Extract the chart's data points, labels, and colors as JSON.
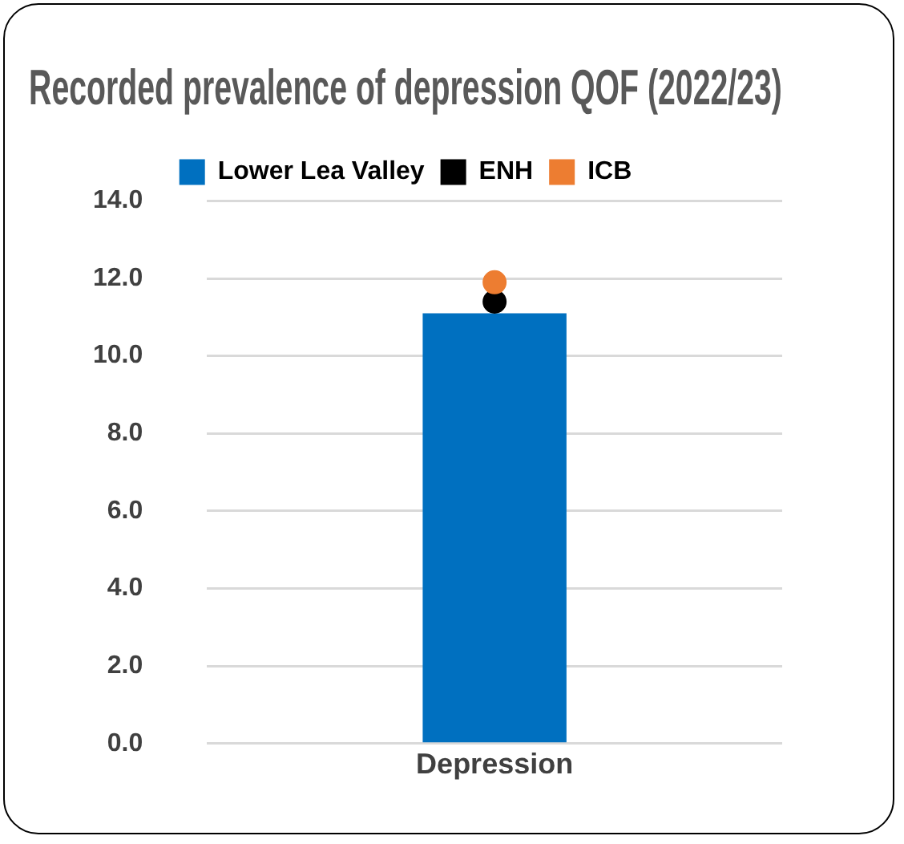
{
  "chart_data": {
    "type": "bar",
    "title": "Recorded prevalence of depression QOF (2022/23)",
    "categories": [
      "Depression"
    ],
    "series": [
      {
        "name": "Lower Lea Valley",
        "color": "#0070c0",
        "values": [
          11.1
        ]
      },
      {
        "name": "ENH",
        "type": "scatter",
        "color": "#000000",
        "values": [
          11.4
        ]
      },
      {
        "name": "ICB",
        "type": "scatter",
        "color": "#ed7d31",
        "values": [
          11.9
        ]
      }
    ],
    "ylim": [
      0,
      14
    ],
    "yticks": [
      {
        "value": 0,
        "label": "0.0"
      },
      {
        "value": 2,
        "label": "2.0"
      },
      {
        "value": 4,
        "label": "4.0"
      },
      {
        "value": 6,
        "label": "6.0"
      },
      {
        "value": 8,
        "label": "8.0"
      },
      {
        "value": 10,
        "label": "10.0"
      },
      {
        "value": 12,
        "label": "12.0"
      },
      {
        "value": 14,
        "label": "14.0"
      }
    ],
    "grid": "y",
    "legend": "top",
    "marker": "circle"
  }
}
